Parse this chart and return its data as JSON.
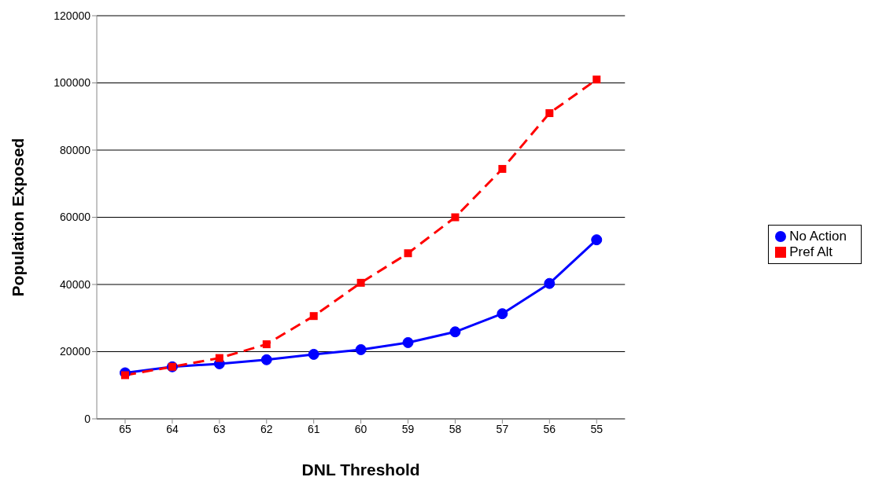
{
  "chart_data": {
    "type": "line",
    "xlabel": "DNL Threshold",
    "ylabel": "Population Exposed",
    "categories": [
      "65",
      "64",
      "63",
      "62",
      "61",
      "60",
      "59",
      "58",
      "57",
      "56",
      "55"
    ],
    "series": [
      {
        "name": "No Action",
        "color": "#0000ff",
        "marker": "circle",
        "line_style": "solid",
        "values": [
          13700,
          15500,
          16400,
          17600,
          19200,
          20600,
          22700,
          25900,
          31300,
          40300,
          53300
        ]
      },
      {
        "name": "Pref Alt",
        "color": "#ff0000",
        "marker": "square",
        "line_style": "dashed",
        "values": [
          13000,
          15500,
          18100,
          22200,
          30600,
          40500,
          49300,
          60000,
          74400,
          91000,
          101000
        ]
      }
    ],
    "ylim": [
      0,
      120000
    ],
    "yticks": [
      0,
      20000,
      40000,
      60000,
      80000,
      100000,
      120000
    ],
    "grid": "y",
    "legend": "right"
  }
}
